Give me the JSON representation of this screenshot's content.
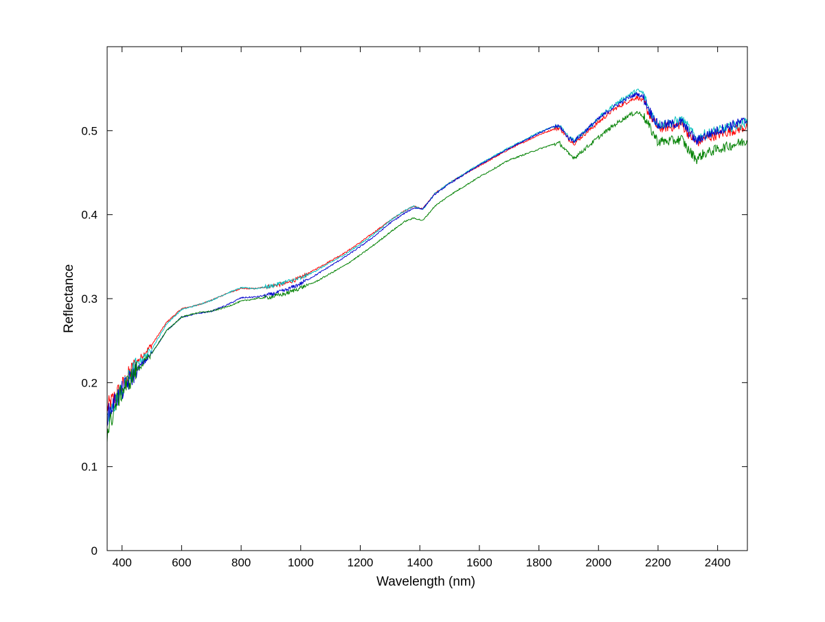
{
  "chart_data": {
    "type": "line",
    "title": "",
    "xlabel": "Wavelength (nm)",
    "ylabel": "Reflectance",
    "xlim": [
      350,
      2500
    ],
    "ylim": [
      0,
      0.6
    ],
    "x_ticks": [
      400,
      600,
      800,
      1000,
      1200,
      1400,
      1600,
      1800,
      2000,
      2200,
      2400
    ],
    "y_ticks": [
      0,
      0.1,
      0.2,
      0.3,
      0.4,
      0.5
    ],
    "y_tick_labels": [
      "0",
      "0.1",
      "0.2",
      "0.3",
      "0.4",
      "0.5"
    ],
    "grid": false,
    "legend": "none",
    "series": [
      {
        "color": "#ff0000",
        "x": [
          350,
          380,
          400,
          450,
          500,
          550,
          600,
          650,
          700,
          750,
          800,
          850,
          900,
          950,
          1000,
          1050,
          1100,
          1150,
          1200,
          1250,
          1300,
          1350,
          1380,
          1410,
          1450,
          1500,
          1600,
          1700,
          1800,
          1850,
          1870,
          1900,
          1920,
          1950,
          2000,
          2050,
          2100,
          2130,
          2150,
          2170,
          2200,
          2250,
          2280,
          2300,
          2330,
          2350,
          2400,
          2450,
          2500
        ],
        "y": [
          0.17,
          0.185,
          0.195,
          0.225,
          0.245,
          0.272,
          0.288,
          0.292,
          0.298,
          0.306,
          0.312,
          0.312,
          0.315,
          0.318,
          0.325,
          0.335,
          0.345,
          0.355,
          0.367,
          0.38,
          0.393,
          0.405,
          0.41,
          0.407,
          0.425,
          0.438,
          0.458,
          0.478,
          0.495,
          0.502,
          0.503,
          0.49,
          0.485,
          0.495,
          0.51,
          0.525,
          0.535,
          0.54,
          0.535,
          0.52,
          0.503,
          0.505,
          0.508,
          0.497,
          0.485,
          0.49,
          0.495,
          0.5,
          0.505
        ]
      },
      {
        "color": "#00bfbf",
        "x": [
          350,
          380,
          400,
          450,
          500,
          550,
          600,
          650,
          700,
          750,
          800,
          850,
          900,
          950,
          1000,
          1050,
          1100,
          1150,
          1200,
          1250,
          1300,
          1350,
          1380,
          1410,
          1450,
          1500,
          1600,
          1700,
          1800,
          1850,
          1870,
          1900,
          1920,
          1950,
          2000,
          2050,
          2100,
          2130,
          2150,
          2170,
          2200,
          2250,
          2280,
          2300,
          2330,
          2350,
          2400,
          2450,
          2500
        ],
        "y": [
          0.15,
          0.18,
          0.19,
          0.222,
          0.24,
          0.27,
          0.287,
          0.292,
          0.298,
          0.306,
          0.313,
          0.312,
          0.315,
          0.32,
          0.324,
          0.333,
          0.343,
          0.353,
          0.365,
          0.378,
          0.393,
          0.405,
          0.41,
          0.406,
          0.425,
          0.438,
          0.46,
          0.48,
          0.498,
          0.505,
          0.506,
          0.492,
          0.488,
          0.498,
          0.515,
          0.53,
          0.542,
          0.548,
          0.545,
          0.525,
          0.507,
          0.51,
          0.513,
          0.505,
          0.49,
          0.495,
          0.5,
          0.505,
          0.51
        ]
      },
      {
        "color": "#0000cc",
        "x": [
          350,
          380,
          400,
          450,
          500,
          550,
          600,
          650,
          700,
          750,
          800,
          850,
          900,
          950,
          1000,
          1050,
          1100,
          1150,
          1200,
          1250,
          1300,
          1350,
          1380,
          1410,
          1450,
          1500,
          1600,
          1700,
          1800,
          1850,
          1870,
          1900,
          1920,
          1950,
          2000,
          2050,
          2100,
          2130,
          2150,
          2170,
          2200,
          2250,
          2280,
          2300,
          2330,
          2350,
          2400,
          2450,
          2500
        ],
        "y": [
          0.16,
          0.18,
          0.19,
          0.215,
          0.235,
          0.262,
          0.278,
          0.282,
          0.285,
          0.292,
          0.301,
          0.302,
          0.305,
          0.31,
          0.318,
          0.328,
          0.339,
          0.35,
          0.362,
          0.375,
          0.39,
          0.402,
          0.408,
          0.407,
          0.424,
          0.437,
          0.459,
          0.479,
          0.497,
          0.505,
          0.505,
          0.491,
          0.488,
          0.498,
          0.514,
          0.528,
          0.539,
          0.544,
          0.54,
          0.525,
          0.506,
          0.508,
          0.51,
          0.5,
          0.487,
          0.493,
          0.5,
          0.507,
          0.512
        ]
      },
      {
        "color": "#008000",
        "x": [
          350,
          380,
          400,
          450,
          500,
          550,
          600,
          650,
          700,
          750,
          800,
          850,
          900,
          950,
          1000,
          1050,
          1100,
          1150,
          1200,
          1250,
          1300,
          1350,
          1380,
          1410,
          1450,
          1500,
          1600,
          1700,
          1800,
          1850,
          1870,
          1900,
          1920,
          1950,
          2000,
          2050,
          2100,
          2130,
          2150,
          2170,
          2200,
          2250,
          2280,
          2300,
          2330,
          2350,
          2400,
          2450,
          2500
        ],
        "y": [
          0.14,
          0.175,
          0.19,
          0.215,
          0.235,
          0.262,
          0.278,
          0.283,
          0.285,
          0.29,
          0.297,
          0.3,
          0.302,
          0.306,
          0.313,
          0.32,
          0.33,
          0.34,
          0.352,
          0.365,
          0.379,
          0.392,
          0.396,
          0.393,
          0.41,
          0.423,
          0.445,
          0.465,
          0.478,
          0.484,
          0.485,
          0.472,
          0.468,
          0.477,
          0.492,
          0.506,
          0.518,
          0.522,
          0.518,
          0.505,
          0.487,
          0.488,
          0.49,
          0.478,
          0.466,
          0.472,
          0.478,
          0.483,
          0.488
        ]
      }
    ]
  }
}
